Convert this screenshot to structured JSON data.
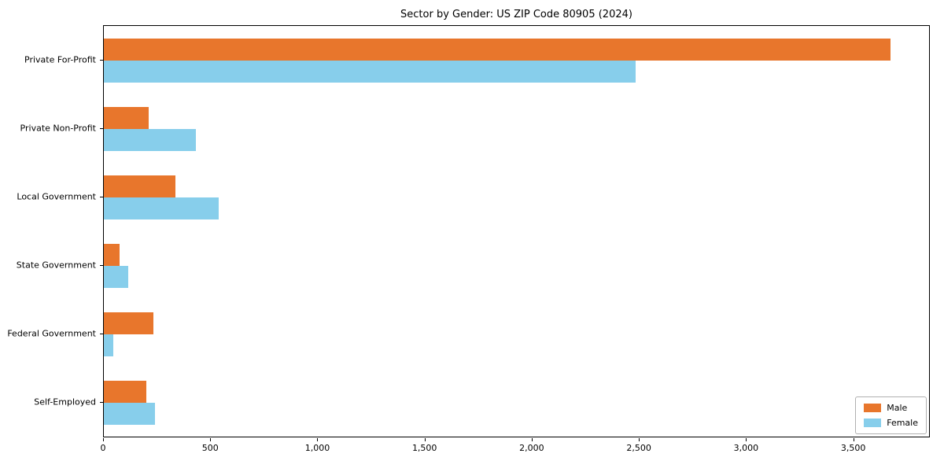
{
  "chart_data": {
    "type": "bar",
    "orientation": "horizontal",
    "title": "Sector by Gender: US ZIP Code 80905 (2024)",
    "categories": [
      "Private For-Profit",
      "Private Non-Profit",
      "Local Government",
      "State Government",
      "Federal Government",
      "Self-Employed"
    ],
    "series": [
      {
        "name": "Male",
        "color": "#e8762c",
        "values": [
          3670,
          210,
          335,
          75,
          230,
          200
        ]
      },
      {
        "name": "Female",
        "color": "#87ceeb",
        "values": [
          2480,
          430,
          535,
          115,
          45,
          240
        ]
      }
    ],
    "xlabel": "",
    "ylabel": "",
    "xlim": [
      0,
      3850
    ],
    "xticks": [
      0,
      500,
      1000,
      1500,
      2000,
      2500,
      3000,
      3500
    ],
    "xtick_labels": [
      "0",
      "500",
      "1,000",
      "1,500",
      "2,000",
      "2,500",
      "3,000",
      "3,500"
    ],
    "grid": false,
    "legend_position": "lower right"
  }
}
